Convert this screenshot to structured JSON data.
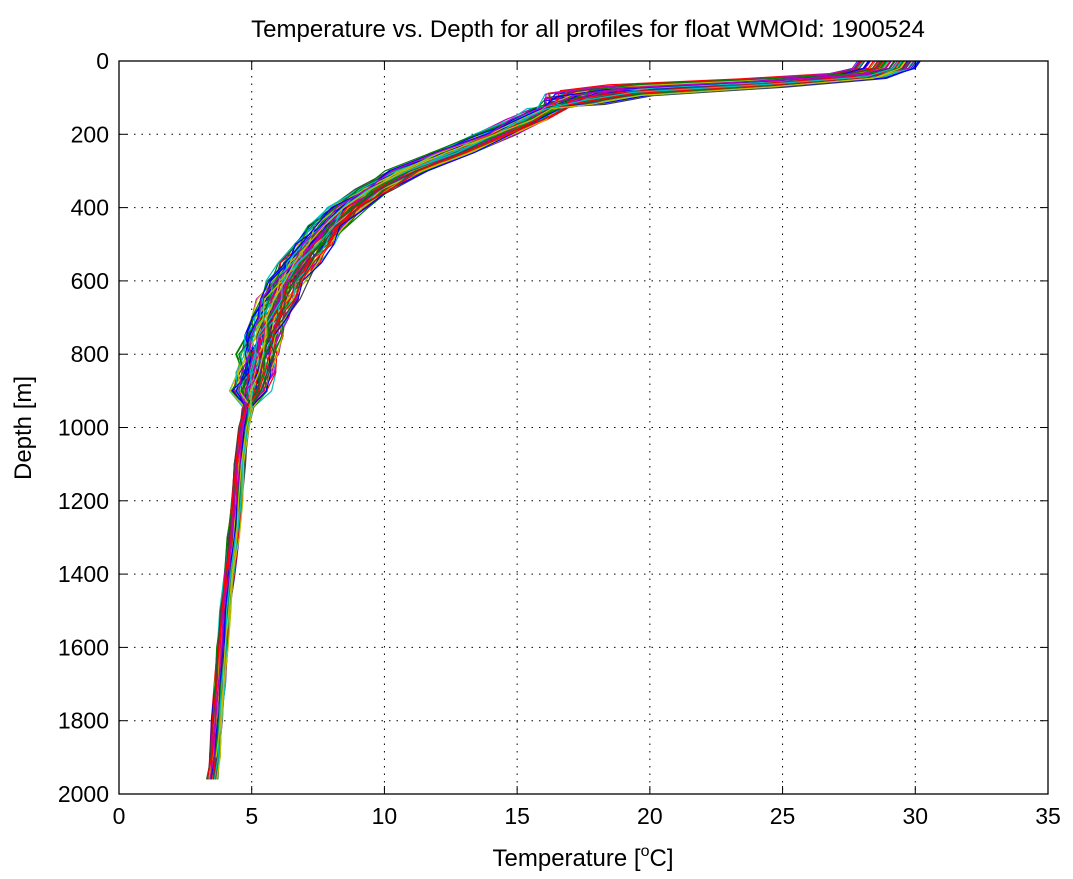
{
  "chart_data": {
    "type": "line",
    "title": "Temperature vs. Depth for all profiles for float WMOId: 1900524",
    "xlabel_prefix": "Temperature [",
    "xlabel_sup": "o",
    "xlabel_suffix": "C]",
    "ylabel": "Depth [m]",
    "xlim": [
      0,
      35
    ],
    "ylim": [
      0,
      2000
    ],
    "y_reversed": true,
    "grid": true,
    "xticks": [
      0,
      5,
      10,
      15,
      20,
      25,
      30,
      35
    ],
    "yticks": [
      0,
      200,
      400,
      600,
      800,
      1000,
      1200,
      1400,
      1600,
      1800,
      2000
    ],
    "series_colors": [
      "#0000ff",
      "#008000",
      "#ff0000",
      "#00bfbf",
      "#bf00bf",
      "#bfbf00",
      "#404040"
    ],
    "mean_profile": {
      "depth": [
        0,
        20,
        40,
        60,
        80,
        100,
        130,
        160,
        200,
        250,
        300,
        350,
        400,
        450,
        500,
        550,
        600,
        650,
        700,
        750,
        800,
        850,
        900,
        950,
        1000,
        1100,
        1200,
        1300,
        1400,
        1500,
        1600,
        1700,
        1800,
        1900,
        1960
      ],
      "temperature": [
        29.0,
        28.8,
        27.8,
        24.0,
        19.0,
        17.2,
        16.2,
        15.4,
        14.2,
        12.6,
        10.8,
        9.6,
        8.6,
        7.9,
        7.3,
        6.8,
        6.3,
        6.0,
        5.7,
        5.45,
        5.25,
        5.1,
        4.95,
        4.85,
        4.7,
        4.55,
        4.45,
        4.3,
        4.15,
        4.0,
        3.9,
        3.8,
        3.7,
        3.6,
        3.5
      ]
    }
  }
}
